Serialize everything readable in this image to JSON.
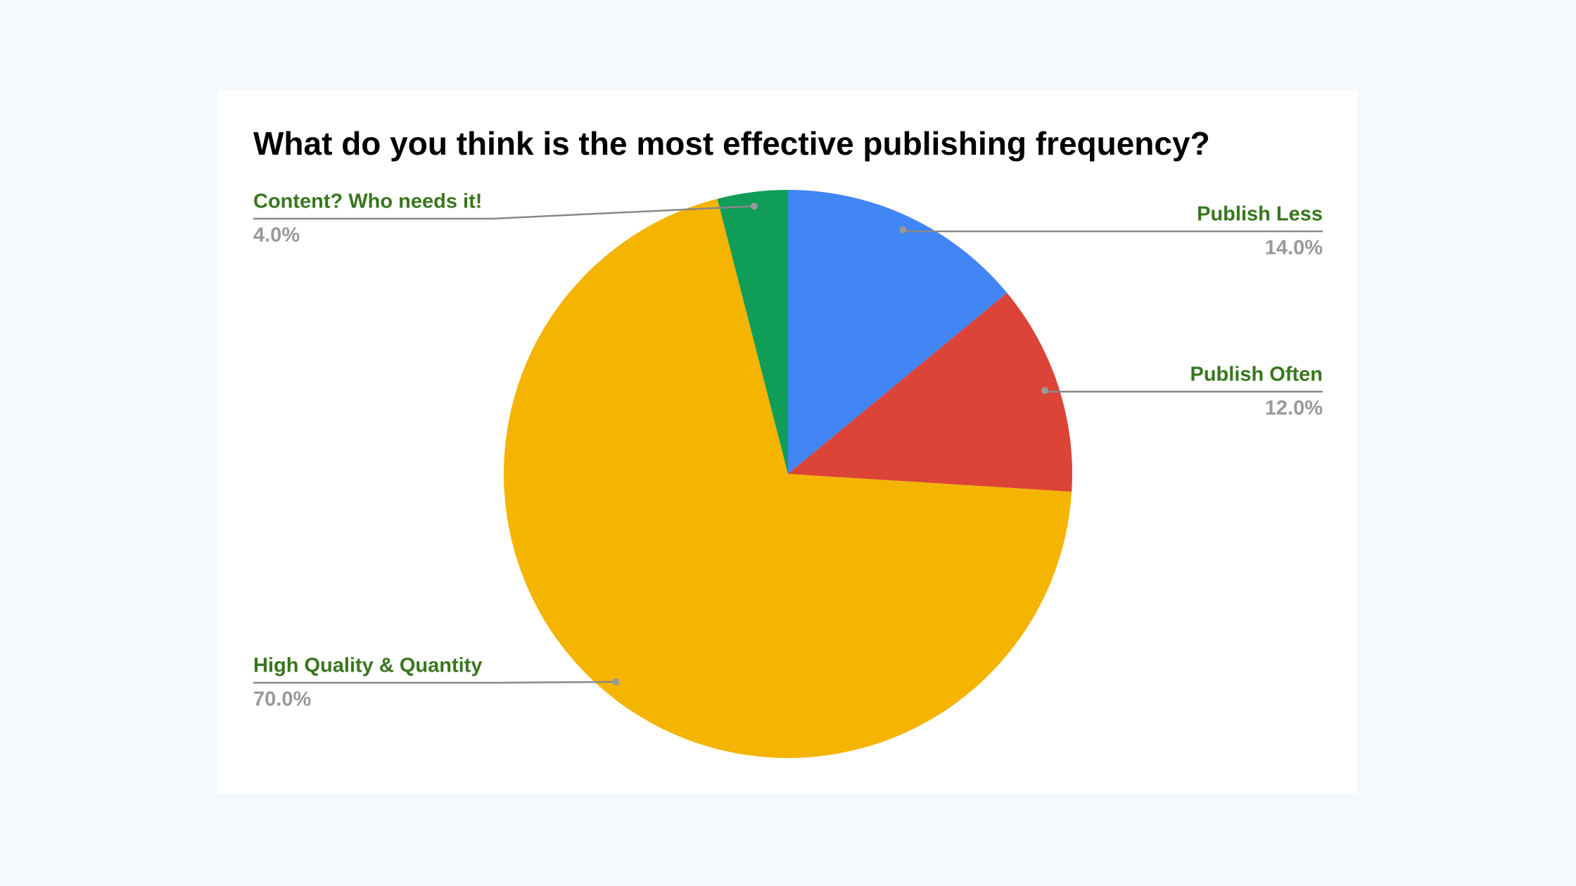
{
  "chart_data": {
    "type": "pie",
    "title": "What do you think is the most effective publishing frequency?",
    "categories": [
      "Publish Less",
      "Publish Often",
      "High Quality & Quantity",
      "Content? Who needs it!"
    ],
    "values": [
      14,
      12,
      70,
      4
    ],
    "value_labels": [
      "14.0%",
      "12.0%",
      "70.0%",
      "4.0%"
    ],
    "colors": [
      "#4285f4",
      "#db4437",
      "#f4b400",
      "#0f9d58"
    ]
  }
}
